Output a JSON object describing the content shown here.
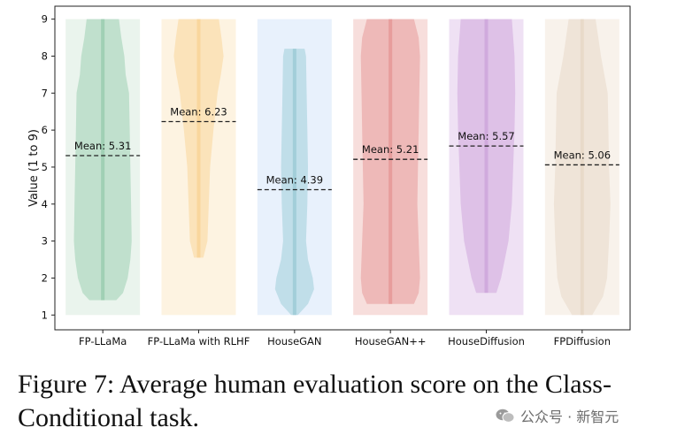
{
  "chart_data": {
    "type": "violin",
    "title": "",
    "xlabel": "",
    "ylabel": "Value (1 to 9)",
    "ylim": [
      0.6,
      9.35
    ],
    "yticks": [
      1,
      2,
      3,
      4,
      5,
      6,
      7,
      8,
      9
    ],
    "grid": false,
    "categories": [
      "FP-LLaMa",
      "FP-LLaMa with RLHF",
      "HouseGAN",
      "HouseGAN++",
      "HouseDiffusion",
      "FPDiffusion"
    ],
    "series": [
      {
        "category": "FP-LLaMa",
        "mean": 5.31,
        "mean_label": "Mean: 5.31",
        "min": 1.4,
        "max": 9.0,
        "fill_color": "#9dcfb2",
        "bg_color": "#e6f2ea",
        "profile": [
          [
            1.4,
            0.4
          ],
          [
            1.6,
            0.6
          ],
          [
            2.0,
            0.74
          ],
          [
            2.5,
            0.82
          ],
          [
            3.0,
            0.86
          ],
          [
            4.0,
            0.84
          ],
          [
            5.0,
            0.82
          ],
          [
            6.0,
            0.8
          ],
          [
            7.0,
            0.78
          ],
          [
            7.5,
            0.68
          ],
          [
            8.0,
            0.64
          ],
          [
            8.5,
            0.55
          ],
          [
            9.0,
            0.48
          ]
        ]
      },
      {
        "category": "FP-LLaMa with RLHF",
        "mean": 6.23,
        "mean_label": "Mean: 6.23",
        "min": 2.55,
        "max": 9.0,
        "fill_color": "#f9d59a",
        "bg_color": "#fdf1dc",
        "profile": [
          [
            2.55,
            0.14
          ],
          [
            3.0,
            0.26
          ],
          [
            4.0,
            0.3
          ],
          [
            5.0,
            0.34
          ],
          [
            6.0,
            0.44
          ],
          [
            7.0,
            0.56
          ],
          [
            7.5,
            0.66
          ],
          [
            8.0,
            0.74
          ],
          [
            8.5,
            0.68
          ],
          [
            9.0,
            0.6
          ]
        ]
      },
      {
        "category": "HouseGAN",
        "mean": 4.39,
        "mean_label": "Mean: 4.39",
        "min": 1.0,
        "max": 8.2,
        "fill_color": "#9fcdd8",
        "bg_color": "#e4eefb",
        "profile": [
          [
            1.0,
            0.1
          ],
          [
            1.3,
            0.4
          ],
          [
            1.7,
            0.58
          ],
          [
            2.0,
            0.54
          ],
          [
            2.5,
            0.4
          ],
          [
            3.0,
            0.34
          ],
          [
            4.0,
            0.38
          ],
          [
            5.0,
            0.4
          ],
          [
            6.0,
            0.38
          ],
          [
            7.0,
            0.36
          ],
          [
            8.0,
            0.34
          ],
          [
            8.2,
            0.3
          ]
        ]
      },
      {
        "category": "HouseGAN++",
        "mean": 5.21,
        "mean_label": "Mean: 5.21",
        "min": 1.3,
        "max": 9.0,
        "fill_color": "#e79a9a",
        "bg_color": "#f6d8d6",
        "profile": [
          [
            1.3,
            0.7
          ],
          [
            1.6,
            0.84
          ],
          [
            2.0,
            0.88
          ],
          [
            3.0,
            0.84
          ],
          [
            4.0,
            0.8
          ],
          [
            5.0,
            0.82
          ],
          [
            6.0,
            0.84
          ],
          [
            7.0,
            0.86
          ],
          [
            8.0,
            0.88
          ],
          [
            8.5,
            0.84
          ],
          [
            9.0,
            0.7
          ]
        ]
      },
      {
        "category": "HouseDiffusion",
        "mean": 5.57,
        "mean_label": "Mean: 5.57",
        "min": 1.6,
        "max": 9.0,
        "fill_color": "#cfa8dd",
        "bg_color": "#ecdcf2",
        "profile": [
          [
            1.6,
            0.3
          ],
          [
            2.0,
            0.44
          ],
          [
            3.0,
            0.66
          ],
          [
            4.0,
            0.76
          ],
          [
            5.0,
            0.8
          ],
          [
            6.0,
            0.84
          ],
          [
            7.0,
            0.86
          ],
          [
            8.0,
            0.84
          ],
          [
            9.0,
            0.76
          ]
        ]
      },
      {
        "category": "FPDiffusion",
        "mean": 5.06,
        "mean_label": "Mean: 5.06",
        "min": 1.0,
        "max": 9.0,
        "fill_color": "#e8d9c8",
        "bg_color": "#f7f0e8",
        "profile": [
          [
            1.0,
            0.3
          ],
          [
            1.5,
            0.62
          ],
          [
            2.0,
            0.74
          ],
          [
            3.0,
            0.8
          ],
          [
            4.0,
            0.84
          ],
          [
            5.0,
            0.8
          ],
          [
            6.0,
            0.78
          ],
          [
            7.0,
            0.76
          ],
          [
            7.5,
            0.66
          ],
          [
            8.0,
            0.56
          ],
          [
            8.5,
            0.48
          ],
          [
            9.0,
            0.4
          ]
        ]
      }
    ]
  },
  "caption": "Figure 7: Average human evaluation score on the Class-Conditional task.",
  "watermark": "公众号 · 新智元"
}
